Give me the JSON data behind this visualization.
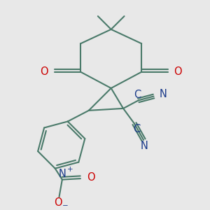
{
  "bg_color": "#e8e8e8",
  "bond_color": "#4a7a6a",
  "bond_width": 1.5,
  "atom_colors": {
    "C": "#1a3a8a",
    "N": "#1a3a8a",
    "O": "#cc0000",
    "plus": "#1a3a8a",
    "minus": "#1a3a8a"
  },
  "font_size": 10.5
}
